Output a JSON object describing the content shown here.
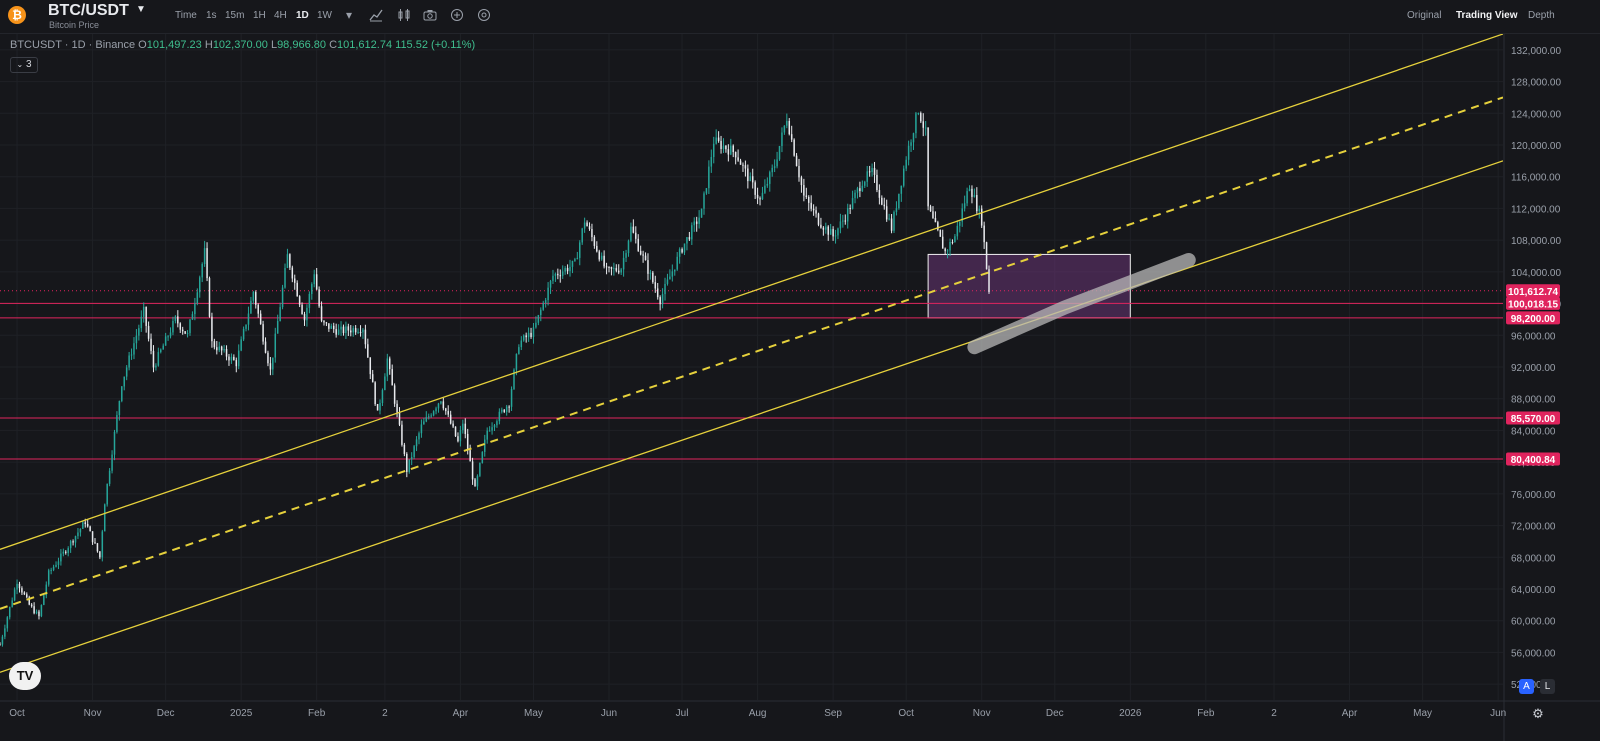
{
  "header": {
    "coin_icon": "bitcoin-icon",
    "pair": "BTC/USDT",
    "subtitle": "Bitcoin Price",
    "timeframes": [
      "Time",
      "1s",
      "15m",
      "1H",
      "4H",
      "1D",
      "1W"
    ],
    "active_timeframe": "1D",
    "tools": [
      "dropdown-icon",
      "indicator-icon",
      "chart-type-icon",
      "camera-icon",
      "plus-circle-icon",
      "settings-circle-icon"
    ],
    "views": [
      "Original",
      "Trading View",
      "Depth"
    ],
    "active_view": "Trading View"
  },
  "legend": {
    "symbol": "BTCUSDT · 1D · Binance",
    "open_label": "O",
    "open": "101,497.23",
    "high_label": "H",
    "high": "102,370.00",
    "low_label": "L",
    "low": "98,966.80",
    "close_label": "C",
    "close": "101,612.74",
    "change": "115.52 (+0.11%)",
    "collapse_label": "3"
  },
  "footer": {
    "btn_a": "A",
    "btn_l": "L",
    "logo": "TV"
  },
  "chart_data": {
    "type": "candlestick",
    "ylim": [
      50000,
      134000
    ],
    "y_ticks": [
      "52,000.00",
      "56,000.00",
      "60,000.00",
      "64,000.00",
      "68,000.00",
      "72,000.00",
      "76,000.00",
      "80,000.00",
      "84,000.00",
      "88,000.00",
      "92,000.00",
      "96,000.00",
      "100,000.00",
      "104,000.00",
      "108,000.00",
      "112,000.00",
      "116,000.00",
      "120,000.00",
      "124,000.00",
      "128,000.00",
      "132,000.00"
    ],
    "x_ticks": [
      "Oct",
      "Nov",
      "Dec",
      "2025",
      "Feb",
      "2",
      "Apr",
      "May",
      "Jun",
      "Jul",
      "Aug",
      "Sep",
      "Oct",
      "Nov",
      "Dec",
      "2026",
      "Feb",
      "2",
      "Apr",
      "May",
      "Jun"
    ],
    "x_tick_dates": [
      "2024-10-01",
      "2024-11-01",
      "2024-12-01",
      "2025-01-01",
      "2025-02-01",
      "2025-03-01",
      "2025-04-01",
      "2025-05-01",
      "2025-06-01",
      "2025-07-01",
      "2025-08-01",
      "2025-09-01",
      "2025-10-01",
      "2025-11-01",
      "2025-12-01",
      "2026-01-01",
      "2026-02-01",
      "2026-03-01",
      "2026-04-01",
      "2026-05-01",
      "2026-06-01"
    ],
    "xlim": [
      "2024-09-24",
      "2026-06-03"
    ],
    "price_pivots": [
      [
        "2024-09-24",
        57000
      ],
      [
        "2024-09-27",
        60500
      ],
      [
        "2024-10-01",
        65000
      ],
      [
        "2024-10-06",
        62000
      ],
      [
        "2024-10-10",
        60500
      ],
      [
        "2024-10-14",
        66000
      ],
      [
        "2024-10-20",
        68500
      ],
      [
        "2024-10-29",
        72500
      ],
      [
        "2024-11-04",
        68000
      ],
      [
        "2024-11-06",
        75000
      ],
      [
        "2024-11-13",
        90000
      ],
      [
        "2024-11-22",
        99000
      ],
      [
        "2024-11-26",
        92000
      ],
      [
        "2024-12-05",
        98000
      ],
      [
        "2024-12-10",
        96000
      ],
      [
        "2024-12-17",
        106500
      ],
      [
        "2024-12-20",
        95000
      ],
      [
        "2024-12-30",
        92500
      ],
      [
        "2025-01-06",
        101500
      ],
      [
        "2025-01-13",
        91500
      ],
      [
        "2025-01-20",
        106000
      ],
      [
        "2025-01-27",
        98000
      ],
      [
        "2025-01-31",
        104000
      ],
      [
        "2025-02-03",
        97500
      ],
      [
        "2025-02-10",
        96500
      ],
      [
        "2025-02-20",
        97000
      ],
      [
        "2025-02-26",
        86000
      ],
      [
        "2025-03-02",
        93000
      ],
      [
        "2025-03-10",
        79000
      ],
      [
        "2025-03-16",
        84500
      ],
      [
        "2025-03-24",
        88000
      ],
      [
        "2025-03-31",
        82500
      ],
      [
        "2025-04-02",
        85000
      ],
      [
        "2025-04-07",
        76500
      ],
      [
        "2025-04-12",
        84000
      ],
      [
        "2025-04-21",
        87500
      ],
      [
        "2025-04-25",
        95000
      ],
      [
        "2025-05-01",
        96500
      ],
      [
        "2025-05-09",
        103500
      ],
      [
        "2025-05-18",
        105000
      ],
      [
        "2025-05-22",
        110500
      ],
      [
        "2025-05-31",
        104000
      ],
      [
        "2025-06-06",
        104500
      ],
      [
        "2025-06-10",
        109500
      ],
      [
        "2025-06-22",
        100500
      ],
      [
        "2025-07-01",
        107000
      ],
      [
        "2025-07-09",
        111500
      ],
      [
        "2025-07-14",
        120500
      ],
      [
        "2025-07-23",
        119000
      ],
      [
        "2025-08-02",
        113000
      ],
      [
        "2025-08-08",
        117500
      ],
      [
        "2025-08-13",
        123500
      ],
      [
        "2025-08-20",
        113500
      ],
      [
        "2025-08-26",
        110500
      ],
      [
        "2025-09-01",
        108500
      ],
      [
        "2025-09-06",
        111000
      ],
      [
        "2025-09-13",
        115500
      ],
      [
        "2025-09-17",
        116500
      ],
      [
        "2025-09-25",
        109500
      ],
      [
        "2025-10-01",
        118500
      ],
      [
        "2025-10-06",
        124500
      ],
      [
        "2025-10-09",
        121500
      ],
      [
        "2025-10-10",
        112000
      ],
      [
        "2025-10-17",
        106500
      ],
      [
        "2025-10-21",
        108500
      ],
      [
        "2025-10-27",
        115000
      ],
      [
        "2025-11-01",
        110500
      ],
      [
        "2025-11-04",
        101612.74
      ]
    ],
    "horizontal_levels": [
      {
        "price": 101612.74,
        "label": "101,612.74",
        "style": "dotted"
      },
      {
        "price": 100018.15,
        "label": "100,018.15",
        "style": "solid"
      },
      {
        "price": 98200.0,
        "label": "98,200.00",
        "style": "solid"
      },
      {
        "price": 85570.0,
        "label": "85,570.00",
        "style": "solid"
      },
      {
        "price": 80400.84,
        "label": "80,400.84",
        "style": "solid"
      }
    ],
    "channel_lines": [
      {
        "style": "solid",
        "points": [
          [
            "2024-09-24",
            69000
          ],
          [
            "2026-06-03",
            134000
          ]
        ]
      },
      {
        "style": "dashed",
        "points": [
          [
            "2024-09-24",
            61500
          ],
          [
            "2026-06-03",
            126000
          ]
        ]
      },
      {
        "style": "solid",
        "points": [
          [
            "2024-09-24",
            53500
          ],
          [
            "2026-06-03",
            118000
          ]
        ]
      }
    ],
    "highlight_zone": {
      "x": [
        "2025-10-10",
        "2026-01-01"
      ],
      "y": [
        98200,
        106200
      ]
    },
    "marker_stroke": {
      "points": [
        [
          "2025-10-29",
          94500
        ],
        [
          "2025-12-05",
          99500
        ],
        [
          "2026-01-25",
          105500
        ]
      ]
    },
    "colors": {
      "up": "#26a69a",
      "down": "#e8eaee",
      "level": "#e0245e",
      "channel": "#e6d13c",
      "zone": "#6a3475",
      "grid": "#1f2126",
      "background": "#16171b"
    }
  }
}
